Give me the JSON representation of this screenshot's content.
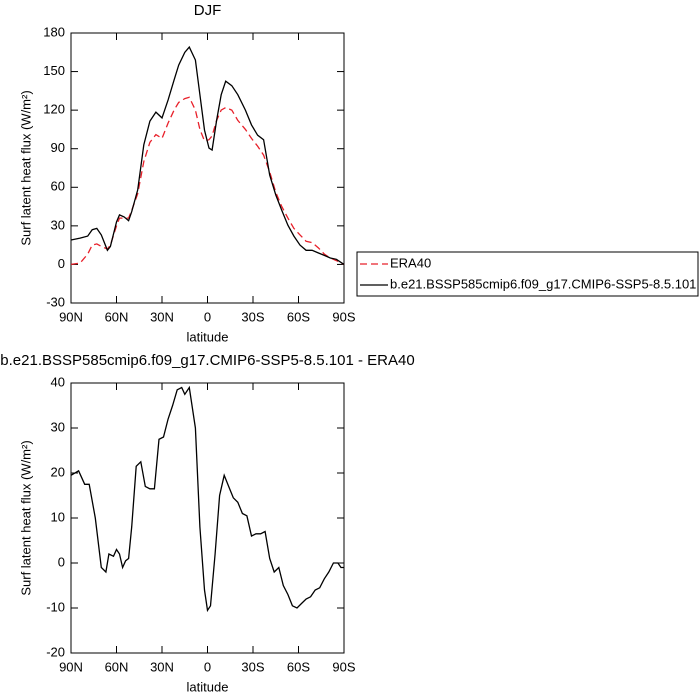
{
  "chart_data": [
    {
      "type": "line",
      "title": "DJF",
      "xlabel": "latitude",
      "ylabel": "Surf latent heat flux (W/m²)",
      "x": [
        90,
        84,
        79,
        76,
        73,
        70,
        66,
        64,
        60,
        58,
        55,
        52,
        50,
        46,
        42,
        38,
        34,
        30,
        26,
        22,
        19,
        15,
        12,
        8,
        5,
        2,
        -1,
        -3,
        -6,
        -9,
        -12,
        -16,
        -20,
        -25,
        -29,
        -33,
        -37,
        -41,
        -45,
        -49,
        -53,
        -57,
        -61,
        -65,
        -69,
        -73,
        -77,
        -81,
        -85,
        -90
      ],
      "series": [
        {
          "name": "ERA40",
          "color": "#e8202a",
          "dash": true,
          "values": [
            0,
            1,
            8,
            15,
            16,
            14,
            12,
            15,
            30,
            36,
            36,
            36,
            42,
            55,
            80,
            95,
            101,
            98,
            110,
            120,
            126,
            129,
            130,
            120,
            105,
            96,
            97,
            100,
            112,
            120,
            122,
            120,
            112,
            105,
            98,
            92,
            85,
            72,
            56,
            45,
            36,
            28,
            23,
            18,
            17,
            13,
            8,
            5,
            3,
            0
          ]
        },
        {
          "name": "b.e21.BSSP585cmip6.f09_g17.CMIP6-SSP5-8.5.101",
          "color": "#000000",
          "dash": false,
          "values": [
            19,
            20.5,
            22,
            27,
            28,
            23,
            11,
            14,
            33,
            38.5,
            37,
            34,
            41,
            58,
            93,
            111.5,
            118.5,
            114,
            128,
            143.5,
            155,
            165,
            169,
            159,
            132,
            104.5,
            90.5,
            89,
            112,
            132,
            142.5,
            139,
            132,
            120,
            108.5,
            100.5,
            97,
            69.5,
            54,
            42,
            30.5,
            22,
            15,
            11,
            11,
            9,
            7,
            5,
            4,
            0
          ]
        }
      ],
      "xlim": [
        90,
        -90
      ],
      "xticks": [
        {
          "value": 90,
          "label": "90N"
        },
        {
          "value": 60,
          "label": "60N"
        },
        {
          "value": 30,
          "label": "30N"
        },
        0,
        {
          "value": -30,
          "label": "30S"
        },
        {
          "value": -60,
          "label": "60S"
        },
        {
          "value": -90,
          "label": "90S"
        }
      ],
      "ylim": [
        -30,
        180
      ],
      "yticks": [
        -30,
        0,
        30,
        60,
        90,
        120,
        150,
        180
      ],
      "legend": "right"
    },
    {
      "type": "line",
      "title": "b.e21.BSSP585cmip6.f09_g17.CMIP6-SSP5-8.5.101 - ERA40",
      "xlabel": "latitude",
      "ylabel": "Surf latent heat flux (W/m²)",
      "x": [
        90,
        85,
        81,
        78,
        74,
        70,
        67,
        65,
        62,
        60,
        58,
        56,
        54,
        52,
        50,
        47,
        44,
        41,
        38,
        35,
        32,
        29,
        26,
        23,
        20,
        17,
        15,
        12,
        8,
        5,
        2,
        0,
        -2,
        -5,
        -8,
        -11,
        -14,
        -17,
        -20,
        -23,
        -26,
        -29,
        -32,
        -35,
        -38,
        -41,
        -44,
        -47,
        -50,
        -53,
        -56,
        -59,
        -62,
        -65,
        -68,
        -71,
        -74,
        -77,
        -80,
        -83,
        -86,
        -88,
        -90
      ],
      "series": [
        {
          "color": "#000000",
          "dash": false,
          "values": [
            19.5,
            20.5,
            17.5,
            17.5,
            10,
            -1,
            -2,
            2,
            1.5,
            3,
            2,
            -1,
            0.5,
            1,
            8,
            21.5,
            22.5,
            17,
            16.5,
            16.5,
            27.5,
            28,
            32,
            35,
            38.5,
            39,
            37.5,
            39,
            30,
            8,
            -6,
            -10.5,
            -9.5,
            2,
            15,
            19.5,
            17,
            14.5,
            13.5,
            11,
            10.5,
            6,
            6.5,
            6.5,
            7,
            1,
            -2,
            -1,
            -5,
            -7,
            -9.5,
            -10,
            -9,
            -8,
            -7.5,
            -6,
            -5.5,
            -3.5,
            -2,
            0,
            0,
            -1,
            -1
          ]
        }
      ],
      "xlim": [
        90,
        -90
      ],
      "xticks": [
        {
          "value": 90,
          "label": "90N"
        },
        {
          "value": 60,
          "label": "60N"
        },
        {
          "value": 30,
          "label": "30N"
        },
        0,
        {
          "value": -30,
          "label": "30S"
        },
        {
          "value": -60,
          "label": "60S"
        },
        {
          "value": -90,
          "label": "90S"
        }
      ],
      "ylim": [
        -20,
        40
      ],
      "yticks": [
        -20,
        -10,
        0,
        10,
        20,
        30,
        40
      ]
    }
  ]
}
